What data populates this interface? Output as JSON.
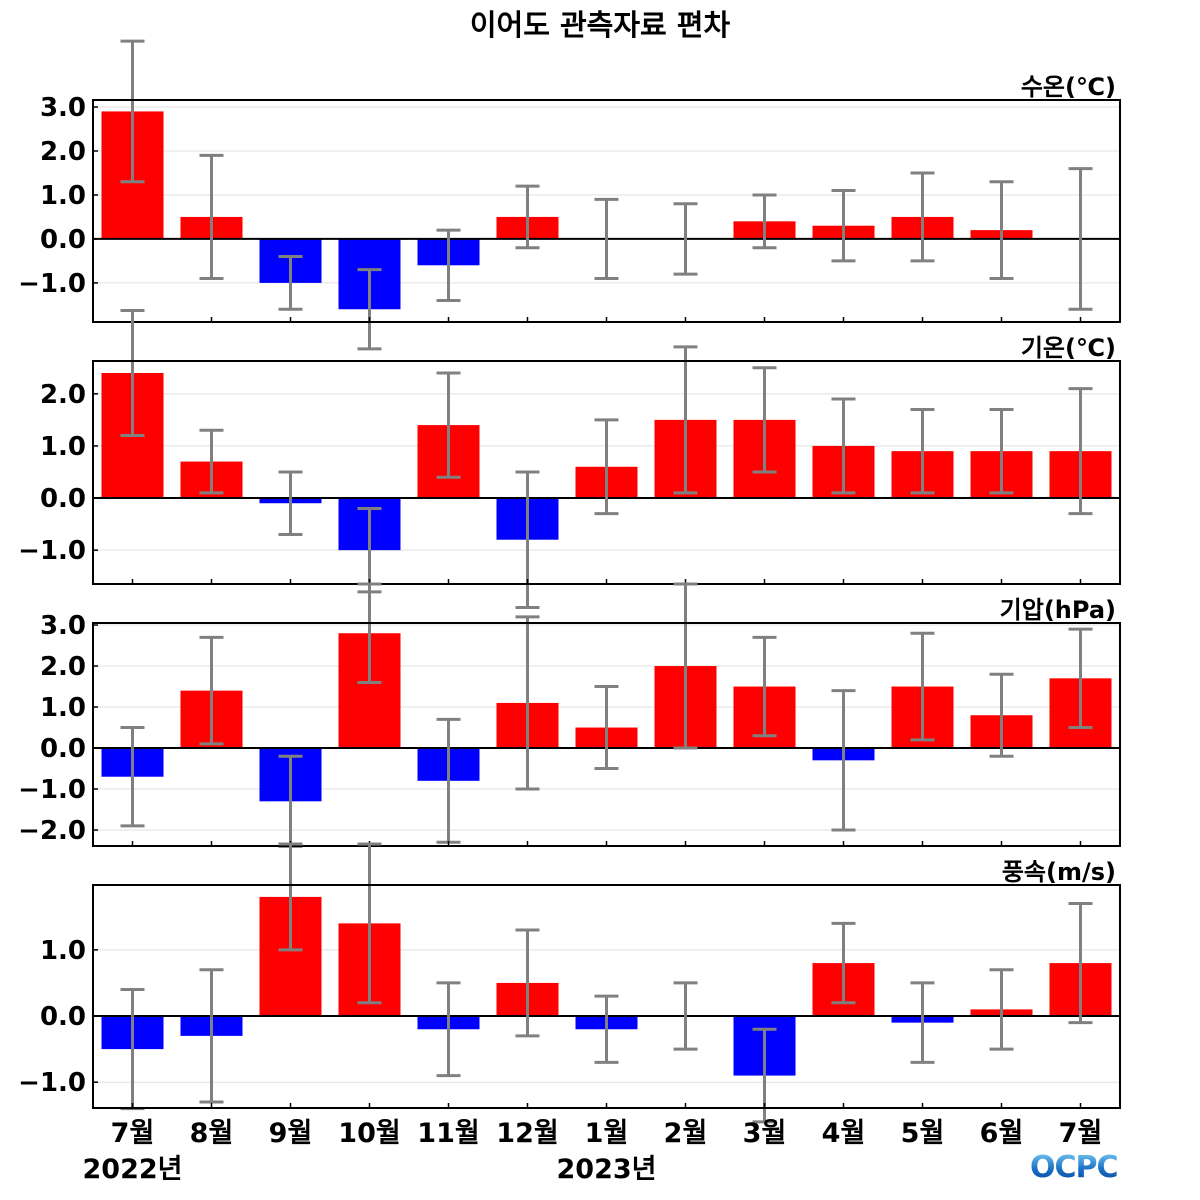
{
  "title": "이어도 관측자료 편차",
  "colors": {
    "positive": "#ff0000",
    "negative": "#0000ff",
    "error_bar": "#808080",
    "grid": "#e0e0e0"
  },
  "logo": "OCPC",
  "x_tick_labels": [
    "7월",
    "8월",
    "9월",
    "10월",
    "11월",
    "12월",
    "1월",
    "2월",
    "3월",
    "4월",
    "5월",
    "6월",
    "7월"
  ],
  "year_labels": [
    {
      "label": "2022년",
      "at_index": 0
    },
    {
      "label": "2023년",
      "at_index": 6
    }
  ],
  "chart_data": [
    {
      "type": "bar",
      "title": "수온(℃)",
      "categories": [
        "7월",
        "8월",
        "9월",
        "10월",
        "11월",
        "12월",
        "1월",
        "2월",
        "3월",
        "4월",
        "5월",
        "6월",
        "7월"
      ],
      "values": [
        2.9,
        0.5,
        -1.0,
        -1.6,
        -0.6,
        0.5,
        0.0,
        0.0,
        0.4,
        0.3,
        0.5,
        0.2,
        0.0
      ],
      "error": [
        1.6,
        1.4,
        0.6,
        0.9,
        0.8,
        0.7,
        0.9,
        0.8,
        0.6,
        0.8,
        1.0,
        1.1,
        1.6
      ],
      "yticks": [
        3.0,
        2.0,
        1.0,
        0.0,
        -1.0
      ],
      "ytick_labels": [
        "3.0",
        "2.0",
        "1.0",
        "0.0",
        "−1.0"
      ],
      "ylim": [
        -1.89,
        3.16
      ],
      "grid": true
    },
    {
      "type": "bar",
      "title": "기온(℃)",
      "categories": [
        "7월",
        "8월",
        "9월",
        "10월",
        "11월",
        "12월",
        "1월",
        "2월",
        "3월",
        "4월",
        "5월",
        "6월",
        "7월"
      ],
      "values": [
        2.4,
        0.7,
        -0.1,
        -1.0,
        1.4,
        -0.8,
        0.6,
        1.5,
        1.5,
        1.0,
        0.9,
        0.9,
        0.9
      ],
      "error": [
        1.2,
        0.6,
        0.6,
        0.8,
        1.0,
        1.3,
        0.9,
        1.4,
        1.0,
        0.9,
        0.8,
        0.8,
        1.2
      ],
      "yticks": [
        2.0,
        1.0,
        0.0,
        -1.0
      ],
      "ytick_labels": [
        "2.0",
        "1.0",
        "0.0",
        "−1.0"
      ],
      "ylim": [
        -1.65,
        2.63
      ],
      "grid": true
    },
    {
      "type": "bar",
      "title": "기압(hPa)",
      "categories": [
        "7월",
        "8월",
        "9월",
        "10월",
        "11월",
        "12월",
        "1월",
        "2월",
        "3월",
        "4월",
        "5월",
        "6월",
        "7월"
      ],
      "values": [
        -0.7,
        1.4,
        -1.3,
        2.8,
        -0.8,
        1.1,
        0.5,
        2.0,
        1.5,
        -0.3,
        1.5,
        0.8,
        1.7
      ],
      "error": [
        1.2,
        1.3,
        1.1,
        1.2,
        1.5,
        2.1,
        1.0,
        2.0,
        1.2,
        1.7,
        1.3,
        1.0,
        1.2
      ],
      "yticks": [
        3.0,
        2.0,
        1.0,
        0.0,
        -1.0,
        -2.0
      ],
      "ytick_labels": [
        "3.0",
        "2.0",
        "1.0",
        "0.0",
        "−1.0",
        "−2.0"
      ],
      "ylim": [
        -2.39,
        3.05
      ],
      "grid": true
    },
    {
      "type": "bar",
      "title": "풍속(m/s)",
      "categories": [
        "7월",
        "8월",
        "9월",
        "10월",
        "11월",
        "12월",
        "1월",
        "2월",
        "3월",
        "4월",
        "5월",
        "6월",
        "7월"
      ],
      "values": [
        -0.5,
        -0.3,
        1.8,
        1.4,
        -0.2,
        0.5,
        -0.2,
        0.0,
        -0.9,
        0.8,
        -0.1,
        0.1,
        0.8
      ],
      "error": [
        0.9,
        1.0,
        0.8,
        1.2,
        0.7,
        0.8,
        0.5,
        0.5,
        0.7,
        0.6,
        0.6,
        0.6,
        0.9
      ],
      "yticks": [
        1.0,
        0.0,
        -1.0
      ],
      "ytick_labels": [
        "1.0",
        "0.0",
        "−1.0"
      ],
      "ylim": [
        -1.39,
        1.98
      ],
      "grid": true
    }
  ]
}
